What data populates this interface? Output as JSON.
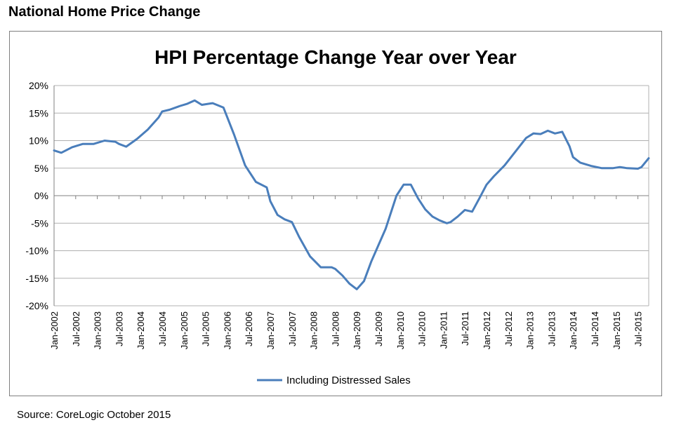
{
  "header": {
    "title": "National Home Price Change"
  },
  "footer": {
    "source": "Source:  CoreLogic October 2015"
  },
  "colors": {
    "series": "#4a7ebb",
    "grid": "#b0b0b0",
    "axis": "#808080",
    "frame": "#808080"
  },
  "chart_data": {
    "type": "line",
    "title": "HPI Percentage Change Year over Year",
    "xlabel": "",
    "ylabel": "",
    "ylim": [
      -20,
      20
    ],
    "yticks": [
      20,
      15,
      10,
      5,
      0,
      -5,
      -10,
      -15,
      -20
    ],
    "ytick_labels": [
      "20%",
      "15%",
      "10%",
      "5%",
      "0%",
      "-5%",
      "-10%",
      "-15%",
      "-20%"
    ],
    "xlim": [
      "Jan-2002",
      "Oct-2015"
    ],
    "xtick_labels": [
      "Jan-2002",
      "Jul-2002",
      "Jan-2003",
      "Jul-2003",
      "Jan-2004",
      "Jul-2004",
      "Jan-2005",
      "Jul-2005",
      "Jan-2006",
      "Jul-2006",
      "Jan-2007",
      "Jul-2007",
      "Jan-2008",
      "Jul-2008",
      "Jan-2009",
      "Jul-2009",
      "Jan-2010",
      "Jul-2010",
      "Jan-2011",
      "Jul-2011",
      "Jan-2012",
      "Jul-2012",
      "Jan-2013",
      "Jul-2013",
      "Jan-2014",
      "Jul-2014",
      "Jan-2015",
      "Jul-2015"
    ],
    "grid": true,
    "legend": "bottom",
    "series": [
      {
        "name": "Including Distressed Sales",
        "color": "#4a7ebb",
        "x": [
          "Jan-2002",
          "Mar-2002",
          "Jun-2002",
          "Sep-2002",
          "Dec-2002",
          "Mar-2003",
          "Jun-2003",
          "Jul-2003",
          "Sep-2003",
          "Dec-2003",
          "Mar-2004",
          "Jun-2004",
          "Jul-2004",
          "Sep-2004",
          "Dec-2004",
          "Feb-2005",
          "Apr-2005",
          "Jun-2005",
          "Aug-2005",
          "Sep-2005",
          "Dec-2005",
          "Mar-2006",
          "Jun-2006",
          "Sep-2006",
          "Dec-2006",
          "Jan-2007",
          "Mar-2007",
          "May-2007",
          "Jul-2007",
          "Sep-2007",
          "Dec-2007",
          "Mar-2008",
          "Jun-2008",
          "Jul-2008",
          "Sep-2008",
          "Nov-2008",
          "Jan-2009",
          "Mar-2009",
          "May-2009",
          "Jul-2009",
          "Sep-2009",
          "Dec-2009",
          "Feb-2010",
          "Apr-2010",
          "Jun-2010",
          "Aug-2010",
          "Oct-2010",
          "Dec-2010",
          "Feb-2011",
          "Mar-2011",
          "May-2011",
          "Jul-2011",
          "Sep-2011",
          "Nov-2011",
          "Jan-2012",
          "Mar-2012",
          "Jun-2012",
          "Sep-2012",
          "Dec-2012",
          "Feb-2013",
          "Apr-2013",
          "Jun-2013",
          "Aug-2013",
          "Oct-2013",
          "Dec-2013",
          "Jan-2014",
          "Mar-2014",
          "Jun-2014",
          "Sep-2014",
          "Dec-2014",
          "Feb-2015",
          "Apr-2015",
          "Jul-2015",
          "Aug-2015",
          "Oct-2015"
        ],
        "values": [
          8.2,
          7.8,
          8.8,
          9.4,
          9.4,
          10.0,
          9.8,
          9.4,
          8.9,
          10.3,
          12.0,
          14.2,
          15.3,
          15.6,
          16.3,
          16.7,
          17.3,
          16.5,
          16.7,
          16.8,
          16.0,
          11.0,
          5.5,
          2.5,
          1.5,
          -1.0,
          -3.5,
          -4.3,
          -4.8,
          -7.5,
          -11.0,
          -13.0,
          -13.0,
          -13.3,
          -14.5,
          -16.0,
          -17.0,
          -15.5,
          -12.0,
          -9.0,
          -6.0,
          0.0,
          2.0,
          2.0,
          -0.5,
          -2.5,
          -3.8,
          -4.5,
          -5.0,
          -4.8,
          -3.8,
          -2.6,
          -2.9,
          -0.5,
          2.0,
          3.5,
          5.5,
          8.0,
          10.5,
          11.3,
          11.2,
          11.8,
          11.3,
          11.6,
          9.0,
          7.0,
          6.0,
          5.4,
          5.0,
          5.0,
          5.2,
          5.0,
          4.9,
          5.2,
          6.8
        ]
      }
    ]
  }
}
